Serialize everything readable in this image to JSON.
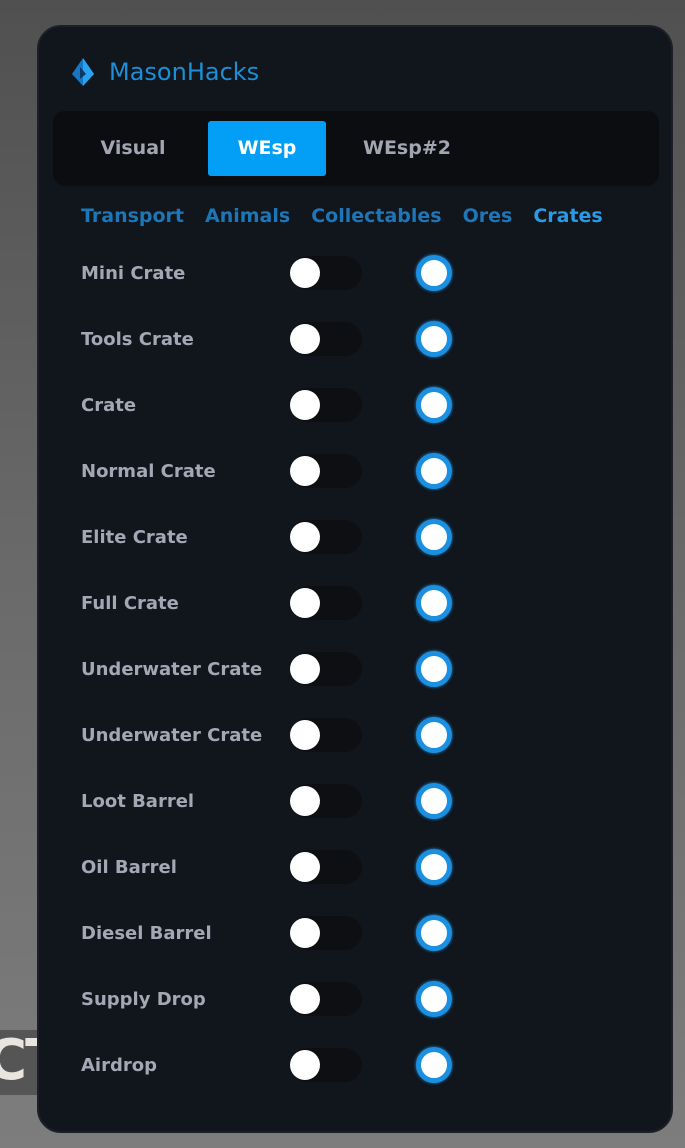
{
  "background_text": "CT",
  "app": {
    "title": "MasonHacks",
    "accent": "#039ff6"
  },
  "tabs": [
    {
      "label": "Visual",
      "active": false
    },
    {
      "label": "WEsp",
      "active": true
    },
    {
      "label": "WEsp#2",
      "active": false
    }
  ],
  "subtabs": [
    {
      "label": "Transport",
      "active": false
    },
    {
      "label": "Animals",
      "active": false
    },
    {
      "label": "Collectables",
      "active": false
    },
    {
      "label": "Ores",
      "active": false
    },
    {
      "label": "Crates",
      "active": true
    }
  ],
  "items": [
    {
      "label": "Mini Crate",
      "toggle": false,
      "radio": true
    },
    {
      "label": "Tools Crate",
      "toggle": false,
      "radio": true
    },
    {
      "label": "Crate",
      "toggle": false,
      "radio": true
    },
    {
      "label": "Normal Crate",
      "toggle": false,
      "radio": true
    },
    {
      "label": "Elite Crate",
      "toggle": false,
      "radio": true
    },
    {
      "label": "Full Crate",
      "toggle": false,
      "radio": true
    },
    {
      "label": "Underwater Crate",
      "toggle": false,
      "radio": true
    },
    {
      "label": "Underwater Crate",
      "toggle": false,
      "radio": true
    },
    {
      "label": "Loot Barrel",
      "toggle": false,
      "radio": true
    },
    {
      "label": "Oil Barrel",
      "toggle": false,
      "radio": true
    },
    {
      "label": "Diesel Barrel",
      "toggle": false,
      "radio": true
    },
    {
      "label": "Supply Drop",
      "toggle": false,
      "radio": true
    },
    {
      "label": "Airdrop",
      "toggle": false,
      "radio": true
    }
  ]
}
